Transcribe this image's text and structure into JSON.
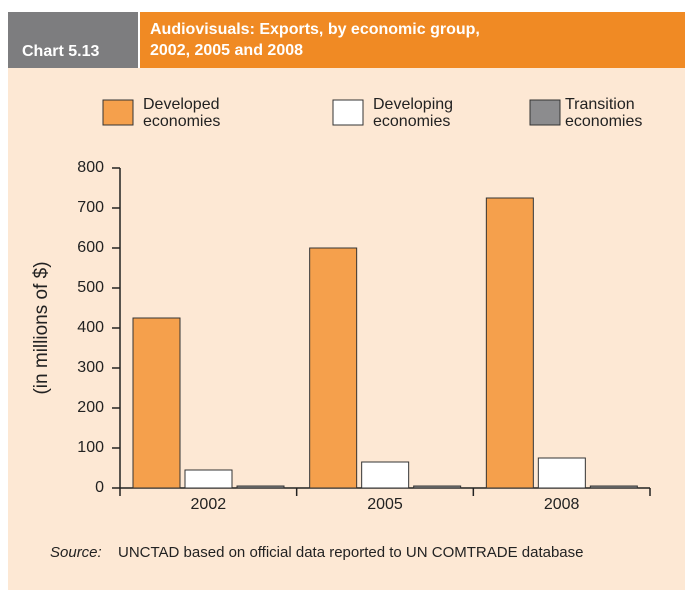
{
  "chart_data": {
    "type": "bar",
    "chart_number": "Chart 5.13",
    "title": [
      "Audiovisuals: Exports, by economic group,",
      "2002, 2005 and 2008"
    ],
    "ylabel": "(in millions of $)",
    "categories": [
      "2002",
      "2005",
      "2008"
    ],
    "series": [
      {
        "name": "Developed economies",
        "color": "#f5a04c",
        "values": [
          425,
          600,
          725
        ]
      },
      {
        "name": "Developing economies",
        "color": "#ffffff",
        "values": [
          45,
          65,
          75
        ]
      },
      {
        "name": "Transition economies",
        "color": "#8c8c8e",
        "values": [
          5,
          5,
          5
        ]
      }
    ],
    "ylim": [
      0,
      800
    ],
    "yticks": [
      0,
      100,
      200,
      300,
      400,
      500,
      600,
      700,
      800
    ],
    "source_label": "Source:",
    "source": "UNCTAD based on official data reported to UN COMTRADE database"
  }
}
